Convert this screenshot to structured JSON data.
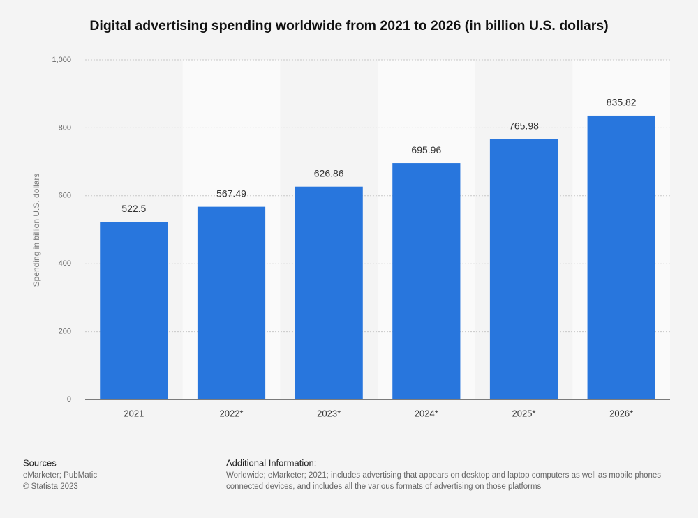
{
  "chart_data": {
    "type": "bar",
    "title": "Digital advertising spending worldwide from 2021 to 2026 (in billion U.S. dollars)",
    "y_label": "Spending in billion U.S. dollars",
    "categories": [
      "2021",
      "2022*",
      "2023*",
      "2024*",
      "2025*",
      "2026*"
    ],
    "values": [
      522.5,
      567.49,
      626.86,
      695.96,
      765.98,
      835.82
    ],
    "color": "#2876dd",
    "ylim": [
      0,
      1000
    ],
    "yticks": [
      0,
      200,
      400,
      600,
      800,
      {
        "value": 1000,
        "label": "1,000"
      }
    ],
    "grid": true
  },
  "sources": {
    "heading": "Sources",
    "lines": [
      "eMarketer; PubMatic",
      "© Statista 2023"
    ]
  },
  "additional_information": {
    "heading": "Additional Information:",
    "lines": [
      "Worldwide; eMarketer; 2021; includes advertising that appears on desktop and laptop computers as well as mobile phones",
      "connected devices, and includes all the various formats of advertising on those platforms"
    ]
  }
}
